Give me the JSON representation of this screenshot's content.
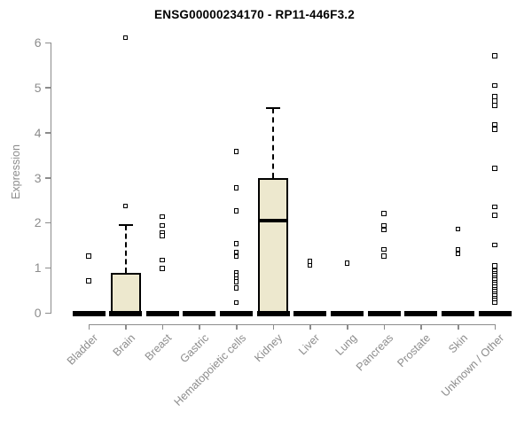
{
  "header": {
    "title": "ENSG00000234170 - RP11-446F3.2"
  },
  "colors": {
    "box_fill": "#ede8ce",
    "box_stroke": "#000000",
    "axis": "#8c8c8c",
    "tick_label": "#8c8c8c",
    "title": "#000000",
    "background": "#ffffff"
  },
  "chart_data": {
    "type": "boxplot",
    "title": "ENSG00000234170 - RP11-446F3.2",
    "xlabel": "",
    "ylabel": "Expression",
    "ylim": [
      0,
      6.2
    ],
    "yticks": [
      0,
      1,
      2,
      3,
      4,
      5,
      6
    ],
    "grid": false,
    "legend": "none",
    "categories": [
      "Bladder",
      "Brain",
      "Breast",
      "Gastric",
      "Hematopoietic cells",
      "Kidney",
      "Liver",
      "Lung",
      "Pancreas",
      "Prostate",
      "Skin",
      "Unknown / Other"
    ],
    "series": [
      {
        "name": "Bladder",
        "whisker_low": 0,
        "q1": 0,
        "median": 0,
        "q3": 0,
        "whisker_high": 0,
        "outliers": [
          1.25,
          0.7
        ]
      },
      {
        "name": "Brain",
        "whisker_low": 0,
        "q1": 0,
        "median": 0,
        "q3": 0.88,
        "whisker_high": 1.95,
        "outliers": [
          6.1,
          2.37
        ]
      },
      {
        "name": "Breast",
        "whisker_low": 0,
        "q1": 0,
        "median": 0,
        "q3": 0,
        "whisker_high": 0,
        "outliers": [
          2.13,
          1.93,
          1.77,
          1.71,
          1.17,
          0.98
        ]
      },
      {
        "name": "Gastric",
        "whisker_low": 0,
        "q1": 0,
        "median": 0,
        "q3": 0,
        "whisker_high": 0,
        "outliers": []
      },
      {
        "name": "Hematopoietic cells",
        "whisker_low": 0,
        "q1": 0,
        "median": 0,
        "q3": 0,
        "whisker_high": 0,
        "outliers": [
          3.58,
          2.77,
          2.26,
          1.53,
          1.34,
          1.24,
          0.89,
          0.82,
          0.75,
          0.68,
          0.55,
          0.22
        ]
      },
      {
        "name": "Kidney",
        "whisker_low": 0,
        "q1": 0,
        "median": 2.05,
        "q3": 3.0,
        "whisker_high": 4.55,
        "outliers": []
      },
      {
        "name": "Liver",
        "whisker_low": 0,
        "q1": 0,
        "median": 0,
        "q3": 0,
        "whisker_high": 0,
        "outliers": [
          1.14,
          1.05
        ]
      },
      {
        "name": "Lung",
        "whisker_low": 0,
        "q1": 0,
        "median": 0,
        "q3": 0,
        "whisker_high": 0,
        "outliers": [
          1.1
        ]
      },
      {
        "name": "Pancreas",
        "whisker_low": 0,
        "q1": 0,
        "median": 0,
        "q3": 0,
        "whisker_high": 0,
        "outliers": [
          2.2,
          1.93,
          1.83,
          1.4,
          1.25
        ]
      },
      {
        "name": "Prostate",
        "whisker_low": 0,
        "q1": 0,
        "median": 0,
        "q3": 0,
        "whisker_high": 0,
        "outliers": []
      },
      {
        "name": "Skin",
        "whisker_low": 0,
        "q1": 0,
        "median": 0,
        "q3": 0,
        "whisker_high": 0,
        "outliers": [
          1.85,
          1.4,
          1.3
        ]
      },
      {
        "name": "Unknown / Other",
        "whisker_low": 0,
        "q1": 0,
        "median": 0,
        "q3": 0,
        "whisker_high": 0,
        "outliers": [
          5.7,
          5.04,
          4.8,
          4.7,
          4.6,
          4.18,
          4.07,
          3.2,
          2.35,
          2.16,
          1.5,
          1.04,
          0.92,
          0.87,
          0.82,
          0.77,
          0.72,
          0.67,
          0.62,
          0.57,
          0.52,
          0.47,
          0.42,
          0.37,
          0.32,
          0.27,
          0.22
        ]
      }
    ]
  }
}
